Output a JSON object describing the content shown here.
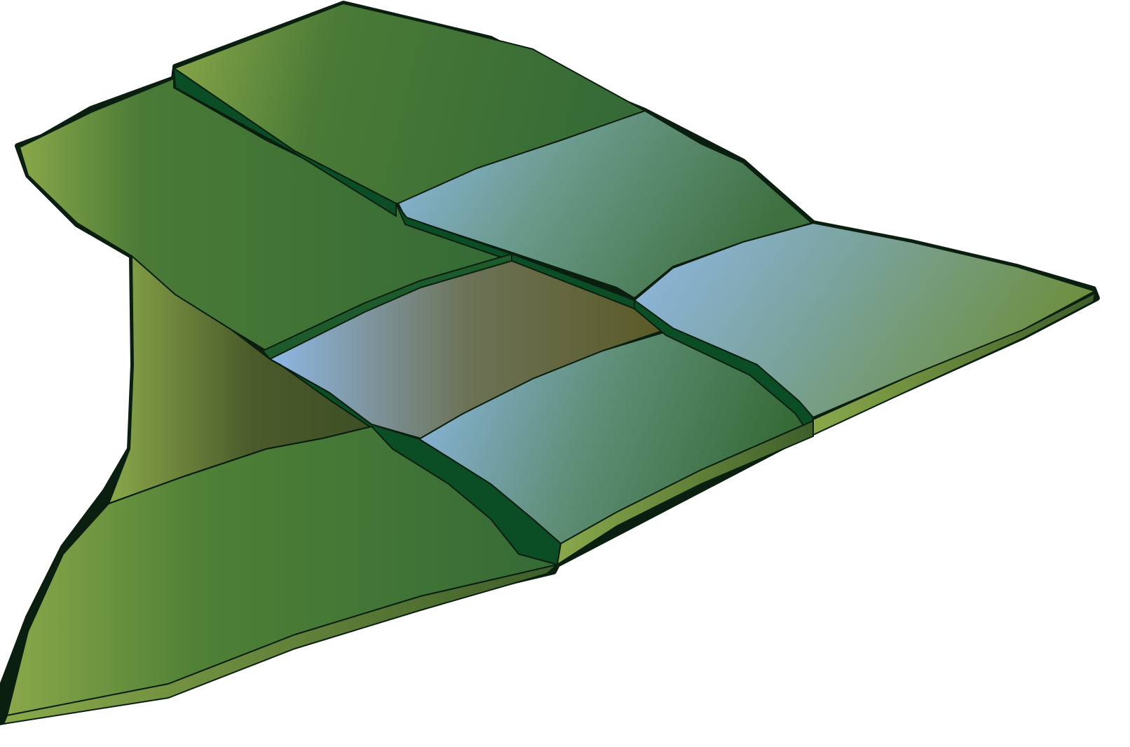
{
  "illustration": {
    "subject": "terraced-fields",
    "colors": {
      "background": "#ffffff",
      "outline": "#0b1f10",
      "grass_light": "#8aa84a",
      "grass_mid": "#4f8036",
      "grass_dark": "#356a36",
      "terrace_wall": "#0b4d24",
      "water_light": "#8fb8e6",
      "water_mid": "#6a9a8a",
      "mud": "#5a5a26",
      "slope_dark": "#3f4f26",
      "base_edge": "#3e5e2a"
    }
  }
}
